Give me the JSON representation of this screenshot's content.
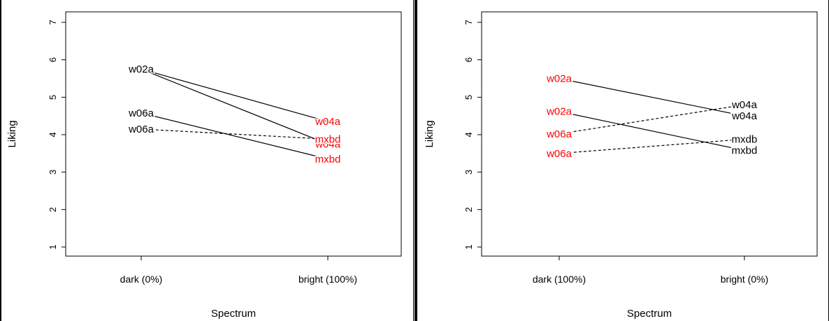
{
  "colors": {
    "axis": "#000000",
    "red_label": "#ff0000",
    "black_label": "#000000",
    "background": "#ffffff"
  },
  "chart_data": [
    {
      "type": "line",
      "xlabel": "Spectrum",
      "ylabel": "Liking",
      "ylim": [
        1,
        7
      ],
      "yticks": [
        "1",
        "2",
        "3",
        "4",
        "5",
        "6",
        "7"
      ],
      "categories": [
        "dark (0%)",
        "bright (100%)"
      ],
      "grid": false,
      "series": [
        {
          "values": [
            5.75,
            4.35
          ],
          "line": "solid",
          "start_label": "w02a",
          "start_color": "#000000",
          "end_label": "w04a",
          "end_color": "#ff0000"
        },
        {
          "values": [
            5.75,
            3.75
          ],
          "line": "solid",
          "start_label": "w02a",
          "start_color": "#000000",
          "end_label": "w04a",
          "end_color": "#ff0000"
        },
        {
          "values": [
            4.58,
            3.35
          ],
          "line": "solid",
          "start_label": "w06a",
          "start_color": "#000000",
          "end_label": "mxbd",
          "end_color": "#ff0000"
        },
        {
          "values": [
            4.15,
            3.88
          ],
          "line": "dashed",
          "start_label": "w06a",
          "start_color": "#000000",
          "end_label": "mxbd",
          "end_color": "#ff0000"
        }
      ]
    },
    {
      "type": "line",
      "xlabel": "Spectrum",
      "ylabel": "Liking",
      "ylim": [
        1,
        7
      ],
      "yticks": [
        "1",
        "2",
        "3",
        "4",
        "5",
        "6",
        "7"
      ],
      "categories": [
        "dark (100%)",
        "bright (0%)"
      ],
      "grid": false,
      "series": [
        {
          "values": [
            5.5,
            4.5
          ],
          "line": "solid",
          "start_label": "w02a",
          "start_color": "#ff0000",
          "end_label": "w04a",
          "end_color": "#000000"
        },
        {
          "values": [
            4.62,
            3.58
          ],
          "line": "solid",
          "start_label": "w02a",
          "start_color": "#ff0000",
          "end_label": "mxbd",
          "end_color": "#000000"
        },
        {
          "values": [
            4.02,
            4.8
          ],
          "line": "dashed",
          "start_label": "w06a",
          "start_color": "#ff0000",
          "end_label": "w04a",
          "end_color": "#000000"
        },
        {
          "values": [
            3.5,
            3.88
          ],
          "line": "dashed",
          "start_label": "w06a",
          "start_color": "#ff0000",
          "end_label": "mxdb",
          "end_color": "#000000"
        }
      ]
    }
  ]
}
